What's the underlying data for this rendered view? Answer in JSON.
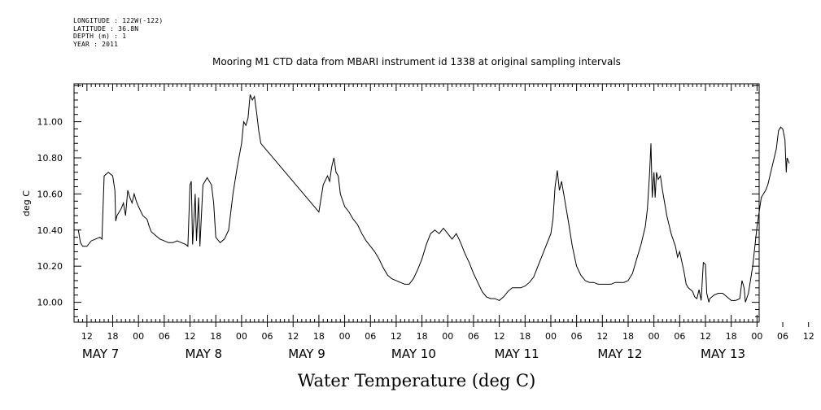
{
  "metadata": {
    "longitude": "LONGITUDE : 122W(-122)",
    "latitude": "LATITUDE : 36.8N",
    "depth": "DEPTH (m) : 1",
    "year": "YEAR : 2011"
  },
  "chart_data": {
    "type": "line",
    "title": "Mooring M1 CTD data from MBARI instrument id 1338 at original sampling intervals",
    "xlabel": "Water Temperature (deg C)",
    "ylabel": "deg C",
    "xlim": [
      "2011-05-07T09:00",
      "2011-05-14T00:30"
    ],
    "ylim": [
      9.89,
      11.21
    ],
    "y_ticks": [
      "10.00",
      "10.20",
      "10.40",
      "10.60",
      "10.80",
      "11.00"
    ],
    "x_tick_labels": [
      "12",
      "18",
      "00",
      "06",
      "12",
      "18",
      "00",
      "06",
      "12",
      "18",
      "00",
      "06",
      "12",
      "18",
      "00",
      "06",
      "12",
      "18",
      "00",
      "06",
      "12",
      "18",
      "00",
      "06",
      "12",
      "18",
      "00",
      "06",
      "12",
      "18",
      "00"
    ],
    "day_labels": [
      "MAY  7",
      "MAY  8",
      "MAY  9",
      "MAY 10",
      "MAY 11",
      "MAY 12",
      "MAY 13"
    ],
    "series": [
      {
        "x_unit": "hours after 2011-05-07 00:00",
        "points": [
          [
            10.0,
            10.4
          ],
          [
            10.5,
            10.33
          ],
          [
            11,
            10.31
          ],
          [
            12,
            10.31
          ],
          [
            13,
            10.34
          ],
          [
            14,
            10.35
          ],
          [
            15,
            10.36
          ],
          [
            15.5,
            10.35
          ],
          [
            16,
            10.7
          ],
          [
            17,
            10.72
          ],
          [
            18,
            10.7
          ],
          [
            18.5,
            10.62
          ],
          [
            18.7,
            10.45
          ],
          [
            19,
            10.48
          ],
          [
            20,
            10.52
          ],
          [
            20.5,
            10.55
          ],
          [
            21,
            10.48
          ],
          [
            21.5,
            10.62
          ],
          [
            22,
            10.58
          ],
          [
            22.5,
            10.55
          ],
          [
            23,
            10.6
          ],
          [
            23.5,
            10.56
          ],
          [
            24,
            10.53
          ],
          [
            25,
            10.48
          ],
          [
            26,
            10.46
          ],
          [
            26.5,
            10.42
          ],
          [
            27,
            10.39
          ],
          [
            28,
            10.37
          ],
          [
            29,
            10.35
          ],
          [
            30,
            10.34
          ],
          [
            31,
            10.33
          ],
          [
            32,
            10.33
          ],
          [
            33,
            10.34
          ],
          [
            34,
            10.33
          ],
          [
            35,
            10.32
          ],
          [
            35.5,
            10.31
          ],
          [
            36,
            10.65
          ],
          [
            36.3,
            10.67
          ],
          [
            36.6,
            10.32
          ],
          [
            37.2,
            10.6
          ],
          [
            37.5,
            10.34
          ],
          [
            38,
            10.58
          ],
          [
            38.3,
            10.31
          ],
          [
            39,
            10.65
          ],
          [
            40,
            10.69
          ],
          [
            41,
            10.65
          ],
          [
            41.5,
            10.55
          ],
          [
            42,
            10.36
          ],
          [
            43,
            10.33
          ],
          [
            44,
            10.35
          ],
          [
            45,
            10.4
          ],
          [
            46,
            10.6
          ],
          [
            47,
            10.75
          ],
          [
            48,
            10.88
          ],
          [
            48.5,
            11.0
          ],
          [
            49,
            10.98
          ],
          [
            49.5,
            11.02
          ],
          [
            50,
            11.15
          ],
          [
            50.5,
            11.12
          ],
          [
            51,
            11.14
          ],
          [
            51.5,
            11.05
          ],
          [
            52,
            10.95
          ],
          [
            52.5,
            10.88
          ],
          [
            66,
            10.5
          ],
          [
            67,
            10.65
          ],
          [
            68,
            10.7
          ],
          [
            68.5,
            10.67
          ],
          [
            69,
            10.75
          ],
          [
            69.5,
            10.8
          ],
          [
            70,
            10.72
          ],
          [
            70.5,
            10.7
          ],
          [
            71,
            10.6
          ],
          [
            72,
            10.53
          ],
          [
            73,
            10.5
          ],
          [
            74,
            10.46
          ],
          [
            75,
            10.43
          ],
          [
            76,
            10.38
          ],
          [
            77,
            10.34
          ],
          [
            78,
            10.31
          ],
          [
            79,
            10.28
          ],
          [
            80,
            10.24
          ],
          [
            81,
            10.19
          ],
          [
            82,
            10.15
          ],
          [
            83,
            10.13
          ],
          [
            84,
            10.12
          ],
          [
            85,
            10.11
          ],
          [
            86,
            10.1
          ],
          [
            87,
            10.1
          ],
          [
            88,
            10.13
          ],
          [
            89,
            10.18
          ],
          [
            90,
            10.24
          ],
          [
            91,
            10.32
          ],
          [
            92,
            10.38
          ],
          [
            93,
            10.4
          ],
          [
            94,
            10.38
          ],
          [
            95,
            10.41
          ],
          [
            96,
            10.38
          ],
          [
            97,
            10.35
          ],
          [
            98,
            10.38
          ],
          [
            99,
            10.33
          ],
          [
            100,
            10.27
          ],
          [
            101,
            10.22
          ],
          [
            102,
            10.16
          ],
          [
            103,
            10.11
          ],
          [
            104,
            10.06
          ],
          [
            105,
            10.03
          ],
          [
            106,
            10.02
          ],
          [
            107,
            10.02
          ],
          [
            108,
            10.01
          ],
          [
            109,
            10.03
          ],
          [
            110,
            10.06
          ],
          [
            111,
            10.08
          ],
          [
            112,
            10.08
          ],
          [
            113,
            10.08
          ],
          [
            114,
            10.09
          ],
          [
            115,
            10.11
          ],
          [
            116,
            10.14
          ],
          [
            117,
            10.2
          ],
          [
            118,
            10.26
          ],
          [
            119,
            10.32
          ],
          [
            120,
            10.38
          ],
          [
            120.5,
            10.46
          ],
          [
            121,
            10.64
          ],
          [
            121.5,
            10.73
          ],
          [
            122,
            10.62
          ],
          [
            122.5,
            10.67
          ],
          [
            123,
            10.6
          ],
          [
            124,
            10.46
          ],
          [
            125,
            10.31
          ],
          [
            126,
            10.2
          ],
          [
            127,
            10.15
          ],
          [
            128,
            10.12
          ],
          [
            129,
            10.11
          ],
          [
            130,
            10.11
          ],
          [
            131,
            10.1
          ],
          [
            132,
            10.1
          ],
          [
            133,
            10.1
          ],
          [
            134,
            10.1
          ],
          [
            135,
            10.11
          ],
          [
            136,
            10.11
          ],
          [
            137,
            10.11
          ],
          [
            138,
            10.12
          ],
          [
            139,
            10.16
          ],
          [
            140,
            10.24
          ],
          [
            141,
            10.32
          ],
          [
            142,
            10.42
          ],
          [
            142.5,
            10.52
          ],
          [
            143,
            10.72
          ],
          [
            143.3,
            10.88
          ],
          [
            143.6,
            10.58
          ],
          [
            144,
            10.72
          ],
          [
            144.3,
            10.58
          ],
          [
            144.6,
            10.72
          ],
          [
            145,
            10.68
          ],
          [
            145.5,
            10.7
          ],
          [
            146,
            10.62
          ],
          [
            147,
            10.48
          ],
          [
            148,
            10.38
          ],
          [
            149,
            10.31
          ],
          [
            149.5,
            10.25
          ],
          [
            150,
            10.28
          ],
          [
            151,
            10.17
          ],
          [
            151.5,
            10.1
          ],
          [
            152,
            10.08
          ],
          [
            153,
            10.06
          ],
          [
            153.5,
            10.03
          ],
          [
            154,
            10.02
          ],
          [
            154.5,
            10.07
          ],
          [
            155,
            10.01
          ],
          [
            155.5,
            10.22
          ],
          [
            156,
            10.21
          ],
          [
            156.3,
            10.05
          ],
          [
            156.8,
            10.0
          ],
          [
            157,
            10.02
          ],
          [
            158,
            10.04
          ],
          [
            159,
            10.05
          ],
          [
            160,
            10.05
          ],
          [
            161,
            10.03
          ],
          [
            162,
            10.01
          ],
          [
            163,
            10.01
          ],
          [
            164,
            10.02
          ],
          [
            164.5,
            10.12
          ],
          [
            165,
            10.08
          ],
          [
            165.3,
            10.0
          ],
          [
            166,
            10.05
          ],
          [
            167,
            10.2
          ],
          [
            168,
            10.42
          ],
          [
            169,
            10.58
          ],
          [
            170,
            10.62
          ],
          [
            170.5,
            10.65
          ],
          [
            171,
            10.7
          ],
          [
            172,
            10.8
          ],
          [
            172.5,
            10.85
          ],
          [
            173,
            10.95
          ],
          [
            173.5,
            10.97
          ],
          [
            174,
            10.96
          ],
          [
            174.5,
            10.9
          ],
          [
            174.8,
            10.72
          ],
          [
            175,
            10.8
          ],
          [
            175.5,
            10.77
          ]
        ]
      }
    ],
    "grid": false
  }
}
